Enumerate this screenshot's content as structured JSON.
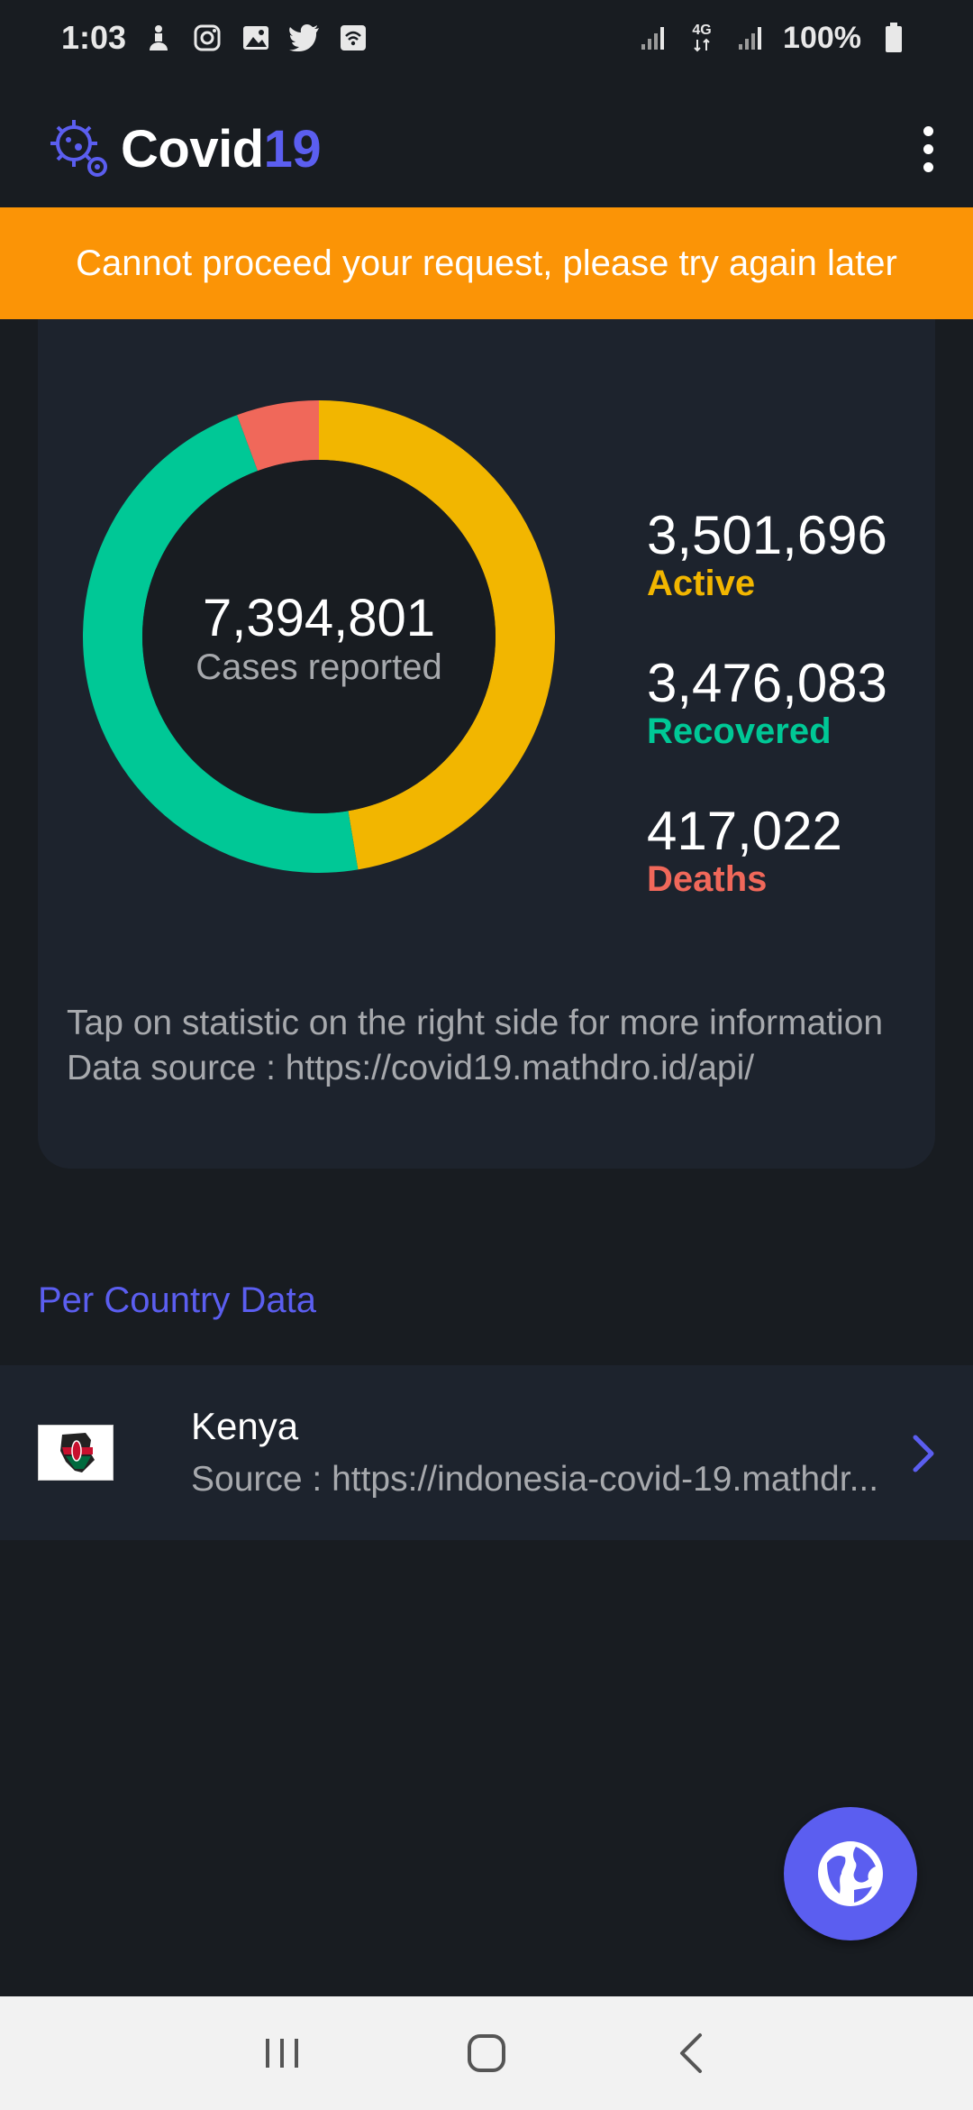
{
  "status_bar": {
    "time": "1:03",
    "battery": "100%",
    "network": "4G",
    "icons_left": [
      "accessibility-icon",
      "instagram-icon",
      "gallery-icon",
      "twitter-icon",
      "wifi-calling-icon"
    ],
    "icons_right": [
      "signal-icon",
      "data-4g-icon",
      "signal-icon",
      "battery-icon"
    ]
  },
  "app_bar": {
    "title_main": "Covid",
    "title_accent": "19",
    "menu_icon": "overflow-menu-icon",
    "logo_icon": "virus-gear-icon"
  },
  "error_banner": {
    "message": "Cannot proceed your request, please try again later"
  },
  "stats": {
    "total": "7,394,801",
    "total_caption": "Cases reported",
    "active_value": "3,501,696",
    "active_label": "Active",
    "recovered_value": "3,476,083",
    "recovered_label": "Recovered",
    "deaths_value": "417,022",
    "deaths_label": "Deaths",
    "note_line1": "Tap on statistic on the right side for more information",
    "note_line2": "Data source : https://covid19.mathdro.id/api/"
  },
  "chart_data": {
    "type": "pie",
    "categories": [
      "Active",
      "Recovered",
      "Deaths"
    ],
    "values": [
      3501696,
      3476083,
      417022
    ],
    "colors": [
      "#f2b600",
      "#00c896",
      "#f0685a"
    ]
  },
  "country_section": {
    "title": "Per Country Data",
    "items": [
      {
        "name": "Kenya",
        "source": "Source : https://indonesia-covid-19.mathdr...",
        "flag_icon": "kenya-flag-icon",
        "chevron_icon": "chevron-right-icon"
      }
    ]
  },
  "fab": {
    "icon": "globe-icon"
  },
  "nav_bar": {
    "icons": [
      "recents-icon",
      "home-icon",
      "back-icon"
    ]
  },
  "colors": {
    "background": "#181c21",
    "card": "#1d232d",
    "accent": "#5b5ef0",
    "banner": "#fb9406",
    "active": "#f2b600",
    "recovered": "#00c896",
    "deaths": "#f0685a",
    "muted_text": "#a7a9ad"
  }
}
